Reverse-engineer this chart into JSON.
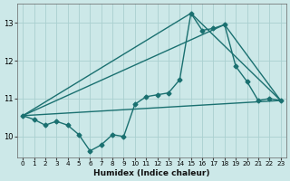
{
  "xlabel": "Humidex (Indice chaleur)",
  "ylabel": "",
  "background_color": "#cce8e8",
  "grid_color": "#aad0d0",
  "line_color": "#1a7070",
  "xlim": [
    -0.5,
    23.5
  ],
  "ylim": [
    9.45,
    13.5
  ],
  "yticks": [
    10,
    11,
    12,
    13
  ],
  "xticks": [
    0,
    1,
    2,
    3,
    4,
    5,
    6,
    7,
    8,
    9,
    10,
    11,
    12,
    13,
    14,
    15,
    16,
    17,
    18,
    19,
    20,
    21,
    22,
    23
  ],
  "series": [
    {
      "x": [
        0,
        1,
        2,
        3,
        4,
        5,
        6,
        7,
        8,
        9,
        10,
        11,
        12,
        13,
        14,
        15,
        16,
        17,
        18,
        19,
        20,
        21,
        22,
        23
      ],
      "y": [
        10.55,
        10.45,
        10.3,
        10.4,
        10.3,
        10.05,
        9.62,
        9.78,
        10.05,
        10.0,
        10.85,
        11.05,
        11.1,
        11.15,
        11.5,
        13.25,
        12.8,
        12.85,
        12.95,
        11.85,
        11.45,
        10.95,
        11.0,
        10.95
      ],
      "marker": "D",
      "markersize": 2.5,
      "linewidth": 1.0,
      "straight": false
    },
    {
      "x": [
        0,
        15,
        23
      ],
      "y": [
        10.55,
        13.25,
        10.95
      ],
      "marker": null,
      "markersize": 0,
      "linewidth": 1.0,
      "straight": true
    },
    {
      "x": [
        0,
        18,
        23
      ],
      "y": [
        10.55,
        12.95,
        10.95
      ],
      "marker": null,
      "markersize": 0,
      "linewidth": 1.0,
      "straight": true
    },
    {
      "x": [
        0,
        23
      ],
      "y": [
        10.55,
        10.95
      ],
      "marker": null,
      "markersize": 0,
      "linewidth": 1.0,
      "straight": true
    }
  ]
}
